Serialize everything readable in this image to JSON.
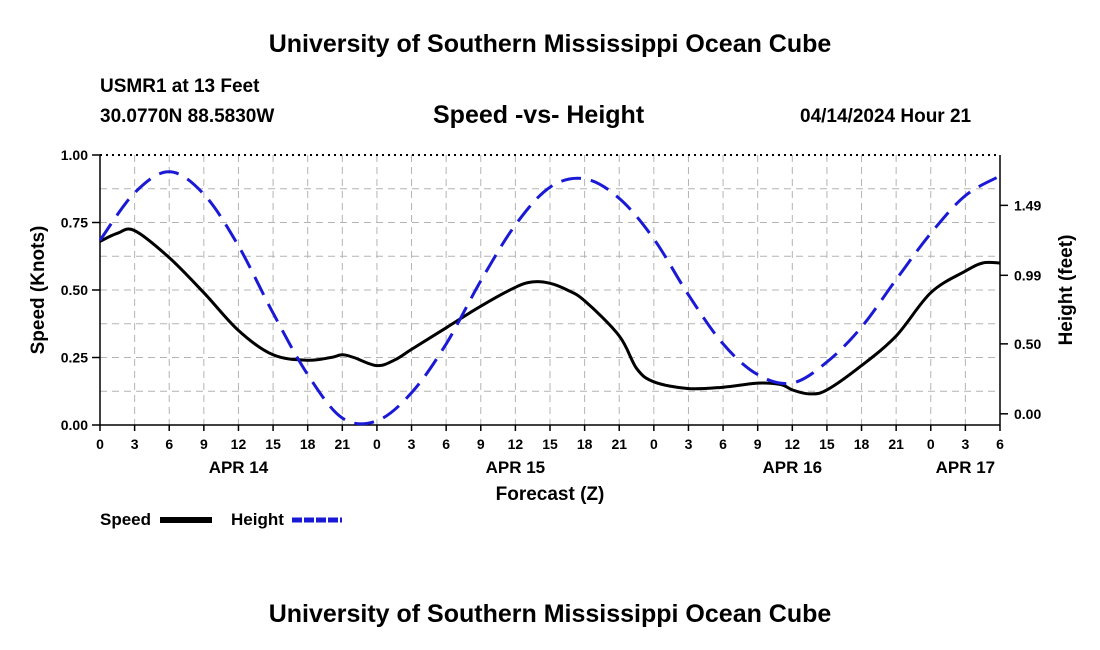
{
  "page": {
    "title_top": "University of Southern Mississippi Ocean Cube",
    "title_bottom": "University of Southern Mississippi Ocean Cube",
    "station": "USMR1 at 13 Feet",
    "coords": "30.0770N  88.5830W",
    "datetime": "04/14/2024 Hour 21"
  },
  "colors": {
    "speed": "#000000",
    "height": "#1a1ad6",
    "grid": "#b4b4b4"
  },
  "chart_data": {
    "type": "line",
    "title": "Speed -vs- Height",
    "xlabel": "Forecast (Z)",
    "ylabel": "Speed (Knots)",
    "y2label": "Height (feet)",
    "x_range_hours": [
      0,
      78
    ],
    "x_tick_step_hours": 3,
    "x_tick_labels": [
      "0",
      "3",
      "6",
      "9",
      "12",
      "15",
      "18",
      "21",
      "0",
      "3",
      "6",
      "9",
      "12",
      "15",
      "18",
      "21",
      "0",
      "3",
      "6",
      "9",
      "12",
      "15",
      "18",
      "21",
      "0",
      "3",
      "6"
    ],
    "day_labels": [
      {
        "label": "APR 14",
        "hour": 12
      },
      {
        "label": "APR 15",
        "hour": 36
      },
      {
        "label": "APR 16",
        "hour": 60
      },
      {
        "label": "APR 17",
        "hour": 75
      }
    ],
    "ylim": [
      0,
      1
    ],
    "y_ticks": [
      0,
      0.25,
      0.5,
      0.75,
      1
    ],
    "y_tick_labels": [
      "0.00",
      "0.25",
      "0.50",
      "0.75",
      "1.00"
    ],
    "y2lim": [
      -0.08,
      1.85
    ],
    "y2_ticks": [
      0,
      0.5,
      0.99,
      1.49
    ],
    "y2_tick_labels": [
      "0.00",
      "0.50",
      "0.99",
      "1.49"
    ],
    "series": [
      {
        "name": "Speed",
        "axis": "left",
        "style": "solid",
        "x": [
          0,
          1.5,
          3,
          6,
          9,
          12,
          15,
          18,
          20,
          21,
          22,
          24,
          25.5,
          27,
          30,
          33,
          36,
          37.5,
          39,
          40.5,
          42,
          45,
          46.5,
          48,
          51,
          54,
          57,
          59,
          60,
          61.5,
          63,
          66,
          69,
          72,
          75,
          76.5,
          78
        ],
        "values": [
          0.68,
          0.71,
          0.72,
          0.62,
          0.49,
          0.35,
          0.26,
          0.24,
          0.25,
          0.26,
          0.25,
          0.22,
          0.24,
          0.28,
          0.36,
          0.44,
          0.51,
          0.53,
          0.525,
          0.5,
          0.46,
          0.33,
          0.21,
          0.16,
          0.135,
          0.14,
          0.155,
          0.15,
          0.13,
          0.115,
          0.13,
          0.22,
          0.33,
          0.49,
          0.57,
          0.6,
          0.6
        ]
      },
      {
        "name": "Height",
        "axis": "right",
        "style": "dashed",
        "x": [
          0,
          3,
          6,
          9,
          12,
          15,
          18,
          21,
          24,
          27,
          30,
          33,
          36,
          39,
          42,
          45,
          48,
          51,
          54,
          57,
          60,
          63,
          66,
          69,
          72,
          75,
          78
        ],
        "values": [
          1.24,
          1.58,
          1.73,
          1.57,
          1.2,
          0.72,
          0.28,
          -0.03,
          -0.05,
          0.15,
          0.5,
          0.95,
          1.35,
          1.62,
          1.68,
          1.54,
          1.25,
          0.85,
          0.5,
          0.28,
          0.22,
          0.37,
          0.62,
          0.96,
          1.29,
          1.56,
          1.7
        ]
      }
    ],
    "legend": [
      {
        "label": "Speed",
        "style": "solid"
      },
      {
        "label": "Height",
        "style": "dashed"
      }
    ],
    "grid": true
  }
}
